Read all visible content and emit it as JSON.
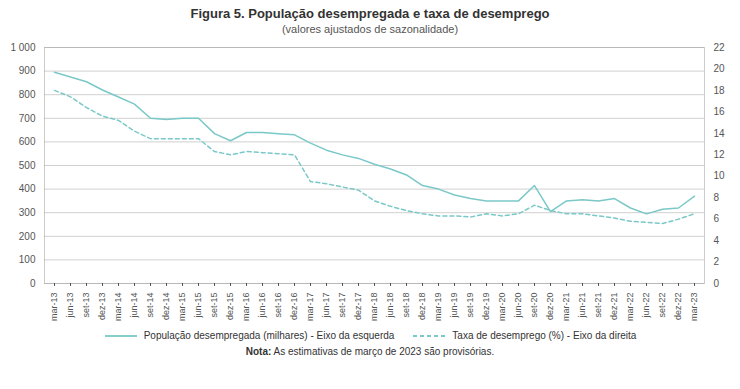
{
  "chart_data": {
    "type": "line",
    "title": "Figura 5. População desempregada e taxa de desemprego",
    "subtitle": "(valores ajustados de sazonalidade)",
    "annotations": [
      "Nota: As estimativas de março de 2023 são provisórias."
    ],
    "categories": [
      "mar-13",
      "jun-13",
      "set-13",
      "dez-13",
      "mar-14",
      "jun-14",
      "set-14",
      "dez-14",
      "mar-15",
      "jun-15",
      "set-15",
      "dez-15",
      "mar-16",
      "jun-16",
      "set-16",
      "dez-16",
      "mar-17",
      "jun-17",
      "set-17",
      "dez-17",
      "mar-18",
      "jun-18",
      "set-18",
      "dez-18",
      "mar-19",
      "jun-19",
      "set-19",
      "dez-19",
      "mar-20",
      "jun-20",
      "set-20",
      "dez-20",
      "mar-21",
      "jun-21",
      "set-21",
      "dez-21",
      "mar-22",
      "jun-22",
      "set-22",
      "dez-22",
      "mar-23"
    ],
    "series": [
      {
        "name": "População desempregada (milhares) - Eixo da esquerda",
        "color": "#7BC8C8",
        "line_style": "solid",
        "values": [
          895,
          875,
          855,
          820,
          790,
          760,
          700,
          695,
          700,
          700,
          635,
          605,
          640,
          640,
          635,
          630,
          595,
          565,
          545,
          530,
          505,
          485,
          460,
          415,
          400,
          375,
          360,
          350,
          350,
          350,
          415,
          305,
          350,
          355,
          350,
          360,
          320,
          295,
          315,
          320,
          370
        ]
      },
      {
        "name": "Taxa de desemprego (%) - Eixo da direita",
        "color": "#7BC8C8",
        "line_style": "dashed",
        "axis": "y2",
        "values": [
          18.0,
          17.4,
          16.4,
          15.6,
          15.2,
          14.2,
          13.5,
          13.5,
          13.5,
          13.5,
          12.3,
          12.0,
          12.3,
          12.2,
          12.1,
          12.0,
          9.5,
          9.3,
          9.0,
          8.7,
          7.7,
          7.2,
          6.8,
          6.5,
          6.3,
          6.3,
          6.2,
          6.5,
          6.3,
          6.5,
          7.3,
          6.8,
          6.5,
          6.5,
          6.3,
          6.1,
          5.8,
          5.7,
          5.6,
          6.0,
          6.5
        ]
      }
    ],
    "ylim": [
      0,
      1000
    ],
    "yticks": [
      0,
      100,
      200,
      300,
      400,
      500,
      600,
      700,
      800,
      900,
      {
        "value": 1000,
        "label": "1 000"
      }
    ],
    "y2lim": [
      0,
      22
    ],
    "y2ticks": [
      0,
      2,
      4,
      6,
      8,
      10,
      12,
      14,
      16,
      18,
      20,
      22
    ],
    "grid": true,
    "legend": "bottom"
  }
}
